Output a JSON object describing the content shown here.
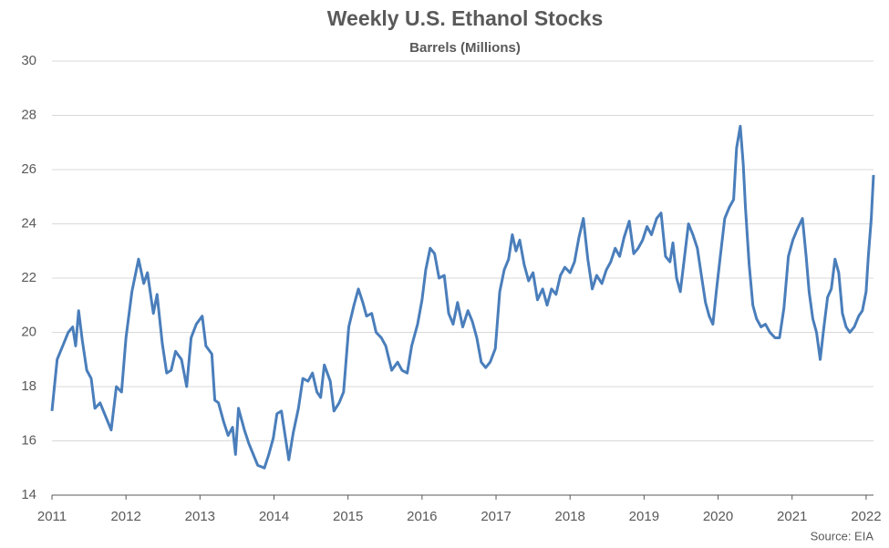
{
  "chart_data": {
    "type": "line",
    "title": "Weekly U.S. Ethanol Stocks",
    "subtitle": "Barrels (Millions)",
    "source": "Source: EIA",
    "color": "#4a7ebb",
    "grid": true,
    "xlim": [
      2011,
      2022.1
    ],
    "xticks": [
      2011,
      2012,
      2013,
      2014,
      2015,
      2016,
      2017,
      2018,
      2019,
      2020,
      2021,
      2022
    ],
    "ylim": [
      14,
      30
    ],
    "yticks": [
      14,
      16,
      18,
      20,
      22,
      24,
      26,
      28,
      30
    ],
    "x": [
      2011.0,
      2011.07,
      2011.16,
      2011.22,
      2011.28,
      2011.32,
      2011.36,
      2011.41,
      2011.47,
      2011.53,
      2011.58,
      2011.65,
      2011.71,
      2011.8,
      2011.87,
      2011.94,
      2012.0,
      2012.08,
      2012.17,
      2012.24,
      2012.29,
      2012.37,
      2012.42,
      2012.49,
      2012.55,
      2012.61,
      2012.67,
      2012.75,
      2012.82,
      2012.88,
      2012.95,
      2013.03,
      2013.08,
      2013.16,
      2013.2,
      2013.25,
      2013.32,
      2013.38,
      2013.44,
      2013.48,
      2013.52,
      2013.6,
      2013.66,
      2013.72,
      2013.78,
      2013.87,
      2013.93,
      2013.99,
      2014.04,
      2014.1,
      2014.15,
      2014.2,
      2014.26,
      2014.33,
      2014.39,
      2014.46,
      2014.52,
      2014.58,
      2014.63,
      2014.68,
      2014.76,
      2014.81,
      2014.88,
      2014.94,
      2015.01,
      2015.08,
      2015.14,
      2015.2,
      2015.25,
      2015.32,
      2015.38,
      2015.45,
      2015.51,
      2015.59,
      2015.67,
      2015.73,
      2015.8,
      2015.86,
      2015.94,
      2016.0,
      2016.05,
      2016.11,
      2016.17,
      2016.23,
      2016.3,
      2016.36,
      2016.42,
      2016.48,
      2016.55,
      2016.62,
      2016.68,
      2016.74,
      2016.8,
      2016.86,
      2016.92,
      2016.99,
      2017.05,
      2017.11,
      2017.17,
      2017.22,
      2017.27,
      2017.32,
      2017.38,
      2017.44,
      2017.5,
      2017.56,
      2017.63,
      2017.69,
      2017.75,
      2017.81,
      2017.87,
      2017.93,
      2018.0,
      2018.06,
      2018.12,
      2018.18,
      2018.24,
      2018.3,
      2018.36,
      2018.43,
      2018.49,
      2018.55,
      2018.61,
      2018.67,
      2018.73,
      2018.8,
      2018.86,
      2018.92,
      2018.98,
      2019.04,
      2019.1,
      2019.17,
      2019.23,
      2019.29,
      2019.35,
      2019.39,
      2019.44,
      2019.49,
      2019.53,
      2019.6,
      2019.66,
      2019.72,
      2019.78,
      2019.83,
      2019.88,
      2019.93,
      2019.98,
      2020.03,
      2020.09,
      2020.15,
      2020.21,
      2020.25,
      2020.3,
      2020.34,
      2020.37,
      2020.42,
      2020.47,
      2020.52,
      2020.58,
      2020.64,
      2020.7,
      2020.77,
      2020.83,
      2020.89,
      2020.95,
      2021.01,
      2021.07,
      2021.14,
      2021.19,
      2021.23,
      2021.28,
      2021.33,
      2021.38,
      2021.43,
      2021.48,
      2021.53,
      2021.58,
      2021.63,
      2021.68,
      2021.73,
      2021.78,
      2021.84,
      2021.9,
      2021.95,
      2022.0,
      2022.03,
      2022.07,
      2022.1
    ],
    "values": [
      17.1,
      19.0,
      19.6,
      20.0,
      20.2,
      19.5,
      20.8,
      19.7,
      18.6,
      18.3,
      17.2,
      17.4,
      17.0,
      16.4,
      18.0,
      17.8,
      19.8,
      21.5,
      22.7,
      21.8,
      22.2,
      20.7,
      21.4,
      19.6,
      18.5,
      18.6,
      19.3,
      19.0,
      18.0,
      19.8,
      20.3,
      20.6,
      19.5,
      19.2,
      17.5,
      17.4,
      16.7,
      16.2,
      16.5,
      15.5,
      17.2,
      16.4,
      15.9,
      15.5,
      15.1,
      15.0,
      15.5,
      16.1,
      17.0,
      17.1,
      16.2,
      15.3,
      16.3,
      17.2,
      18.3,
      18.2,
      18.5,
      17.8,
      17.6,
      18.8,
      18.2,
      17.1,
      17.4,
      17.8,
      20.2,
      21.0,
      21.6,
      21.1,
      20.6,
      20.7,
      20.0,
      19.8,
      19.5,
      18.6,
      18.9,
      18.6,
      18.5,
      19.5,
      20.3,
      21.2,
      22.3,
      23.1,
      22.9,
      22.0,
      22.1,
      20.7,
      20.3,
      21.1,
      20.2,
      20.8,
      20.4,
      19.8,
      18.9,
      18.7,
      18.9,
      19.4,
      21.5,
      22.3,
      22.7,
      23.6,
      23.0,
      23.4,
      22.5,
      21.9,
      22.2,
      21.2,
      21.6,
      21.0,
      21.6,
      21.4,
      22.1,
      22.4,
      22.2,
      22.6,
      23.5,
      24.2,
      22.7,
      21.6,
      22.1,
      21.8,
      22.3,
      22.6,
      23.1,
      22.8,
      23.5,
      24.1,
      22.9,
      23.1,
      23.4,
      23.9,
      23.6,
      24.2,
      24.4,
      22.8,
      22.6,
      23.3,
      22.0,
      21.5,
      22.4,
      24.0,
      23.6,
      23.1,
      22.0,
      21.1,
      20.6,
      20.3,
      21.6,
      22.8,
      24.2,
      24.6,
      24.9,
      26.8,
      27.6,
      26.2,
      24.6,
      22.5,
      21.0,
      20.5,
      20.2,
      20.3,
      20.0,
      19.8,
      19.8,
      20.9,
      22.8,
      23.4,
      23.8,
      24.2,
      22.8,
      21.5,
      20.5,
      20.0,
      19.0,
      20.2,
      21.3,
      21.6,
      22.7,
      22.2,
      20.7,
      20.2,
      20.0,
      20.2,
      20.6,
      20.8,
      21.5,
      22.8,
      24.2,
      25.8
    ]
  }
}
